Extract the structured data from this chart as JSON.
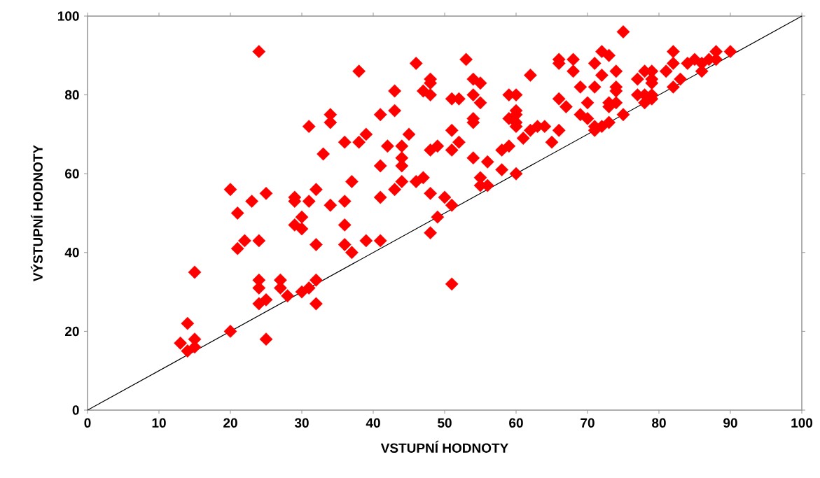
{
  "chart_data": {
    "type": "scatter",
    "xlabel": "VSTUPNÍ HODNOTY",
    "ylabel": "VÝSTUPNÍ HODNOTY",
    "xlim": [
      0,
      100
    ],
    "ylim": [
      0,
      100
    ],
    "xticks": [
      0,
      10,
      20,
      30,
      40,
      50,
      60,
      70,
      80,
      90,
      100
    ],
    "yticks": [
      0,
      20,
      40,
      60,
      80,
      100
    ],
    "grid": false,
    "series": [
      {
        "color": "#ff0000",
        "marker": "diamond",
        "x": [
          13,
          14,
          14,
          15,
          15,
          15,
          20,
          20,
          21,
          21,
          22,
          23,
          24,
          24,
          24,
          24,
          24,
          25,
          25,
          25,
          27,
          27,
          28,
          29,
          29,
          29,
          30,
          30,
          30,
          31,
          31,
          31,
          32,
          32,
          32,
          32,
          33,
          34,
          34,
          34,
          36,
          36,
          36,
          36,
          37,
          37,
          38,
          38,
          39,
          39,
          41,
          41,
          41,
          41,
          42,
          43,
          43,
          43,
          44,
          44,
          44,
          44,
          45,
          46,
          46,
          47,
          47,
          48,
          48,
          48,
          48,
          48,
          48,
          49,
          49,
          50,
          51,
          51,
          51,
          51,
          51,
          52,
          52,
          53,
          54,
          54,
          54,
          54,
          54,
          55,
          55,
          55,
          55,
          56,
          56,
          58,
          58,
          59,
          59,
          59,
          60,
          60,
          60,
          60,
          60,
          60,
          61,
          62,
          62,
          63,
          64,
          65,
          66,
          66,
          66,
          66,
          67,
          68,
          68,
          69,
          69,
          70,
          70,
          71,
          71,
          71,
          71,
          72,
          72,
          72,
          73,
          73,
          73,
          73,
          74,
          74,
          74,
          74,
          75,
          75,
          77,
          77,
          78,
          78,
          78,
          79,
          79,
          79,
          79,
          79,
          81,
          82,
          82,
          82,
          83,
          84,
          85,
          86,
          86,
          87,
          88,
          88,
          90
        ],
        "values": [
          17,
          22,
          15,
          18,
          16,
          35,
          56,
          20,
          50,
          41,
          43,
          53,
          91,
          43,
          33,
          31,
          27,
          55,
          28,
          18,
          33,
          31,
          29,
          54,
          53,
          47,
          49,
          46,
          30,
          72,
          53,
          31,
          56,
          42,
          33,
          27,
          65,
          75,
          73,
          52,
          68,
          53,
          47,
          42,
          58,
          40,
          86,
          68,
          70,
          43,
          75,
          62,
          54,
          43,
          67,
          81,
          76,
          56,
          67,
          64,
          62,
          58,
          70,
          88,
          58,
          81,
          59,
          84,
          83,
          80,
          66,
          55,
          45,
          67,
          49,
          54,
          79,
          71,
          66,
          52,
          32,
          79,
          68,
          89,
          84,
          80,
          74,
          73,
          64,
          83,
          78,
          59,
          57,
          63,
          57,
          66,
          61,
          80,
          74,
          67,
          80,
          76,
          75,
          73,
          72,
          60,
          69,
          85,
          71,
          72,
          72,
          68,
          89,
          88,
          79,
          71,
          77,
          89,
          86,
          82,
          75,
          78,
          74,
          88,
          82,
          72,
          71,
          91,
          85,
          72,
          90,
          78,
          77,
          73,
          86,
          82,
          81,
          78,
          96,
          75,
          84,
          80,
          86,
          80,
          78,
          86,
          84,
          83,
          80,
          79,
          86,
          91,
          88,
          82,
          84,
          88,
          89,
          88,
          86,
          89,
          91,
          89,
          91
        ]
      },
      {
        "type": "line",
        "color": "#000000",
        "marker": "none",
        "line_style": "solid",
        "x": [
          0,
          100
        ],
        "values": [
          0,
          100
        ]
      }
    ]
  }
}
